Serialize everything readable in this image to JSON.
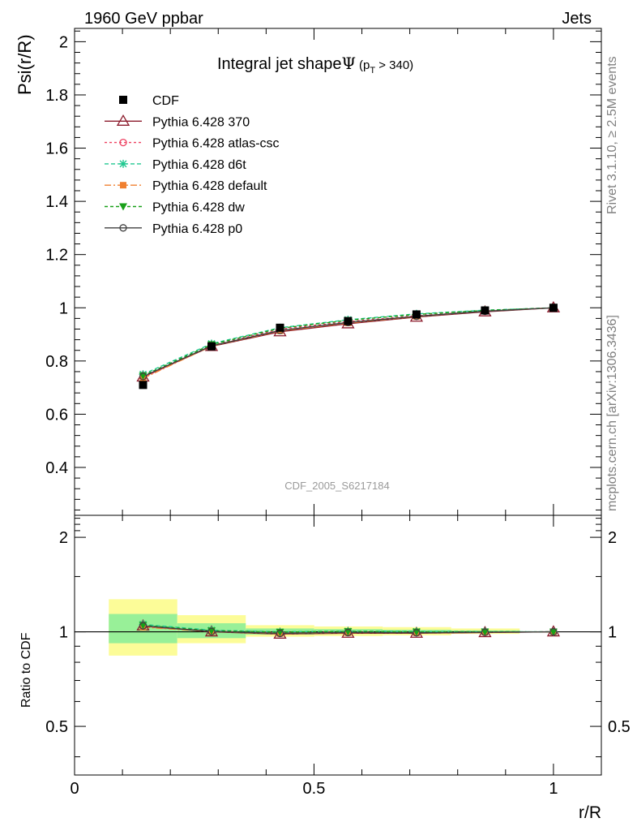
{
  "header": {
    "left": "1960 GeV ppbar",
    "right": "Jets"
  },
  "side_labels": {
    "rivet": "Rivet 3.1.10, ≥ 2.5M events",
    "mcplots": "mcplots.cern.ch [arXiv:1306.3436]"
  },
  "analysis_id": "CDF_2005_S6217184",
  "chart_data": [
    {
      "type": "line",
      "title_main": "Integral jet shape",
      "title_psi": "Ψ",
      "title_cut_open": "(p",
      "title_cut_sub": "T",
      "title_cut_close": " > 340)",
      "ylabel": "Psi(r/R)",
      "xlim": [
        0,
        1.1
      ],
      "ylim": [
        0.22,
        2.05
      ],
      "yticks": [
        0.4,
        0.6,
        0.8,
        1,
        1.2,
        1.4,
        1.6,
        1.8,
        2
      ],
      "ytick_labels": [
        "0.4",
        "0.6",
        "0.8",
        "1",
        "1.2",
        "1.4",
        "1.6",
        "1.8",
        "2"
      ],
      "x": [
        0.143,
        0.286,
        0.429,
        0.571,
        0.714,
        0.857,
        1.0
      ],
      "series": [
        {
          "name": "CDF",
          "color": "#000000",
          "marker": "filled-square",
          "dash": "none",
          "values": [
            0.71,
            0.855,
            0.925,
            0.95,
            0.975,
            0.99,
            1.0
          ]
        },
        {
          "name": "Pythia 6.428 370",
          "color": "#8b1a2b",
          "marker": "open-triangle",
          "dash": "solid",
          "values": [
            0.74,
            0.855,
            0.91,
            0.94,
            0.965,
            0.985,
            1.0
          ]
        },
        {
          "name": "Pythia 6.428 atlas-csc",
          "color": "#ee4060",
          "marker": "open-circle",
          "dash": "3,3",
          "values": [
            0.737,
            0.858,
            0.92,
            0.948,
            0.97,
            0.988,
            1.0
          ]
        },
        {
          "name": "Pythia 6.428 d6t",
          "color": "#20c890",
          "marker": "star",
          "dash": "5,3",
          "values": [
            0.75,
            0.865,
            0.925,
            0.955,
            0.977,
            0.991,
            1.0
          ]
        },
        {
          "name": "Pythia 6.428 default",
          "color": "#f08030",
          "marker": "filled-square-small",
          "dash": "8,3,2,3",
          "values": [
            0.735,
            0.856,
            0.913,
            0.943,
            0.967,
            0.987,
            1.0
          ]
        },
        {
          "name": "Pythia 6.428 dw",
          "color": "#19a019",
          "marker": "filled-triangle-down",
          "dash": "4,3",
          "values": [
            0.745,
            0.862,
            0.923,
            0.953,
            0.975,
            0.99,
            1.0
          ]
        },
        {
          "name": "Pythia 6.428 p0",
          "color": "#404040",
          "marker": "open-circle",
          "dash": "solid",
          "values": [
            0.742,
            0.857,
            0.915,
            0.945,
            0.968,
            0.987,
            1.0
          ]
        }
      ],
      "legend_position": "top-left"
    },
    {
      "type": "line",
      "xlabel": "r/R",
      "ylabel": "Ratio to CDF",
      "xlim": [
        0,
        1.1
      ],
      "ylim": [
        0.35,
        2.35
      ],
      "log_y": true,
      "xticks": [
        0,
        0.5,
        1
      ],
      "xtick_labels": [
        "0",
        "0.5",
        "1"
      ],
      "yticks": [
        0.5,
        1,
        2
      ],
      "ytick_labels": [
        "0.5",
        "1",
        "2"
      ],
      "bins": [
        [
          0.0715,
          0.2145
        ],
        [
          0.2145,
          0.3575
        ],
        [
          0.3575,
          0.5005
        ],
        [
          0.5005,
          0.6435
        ],
        [
          0.6435,
          0.7865
        ],
        [
          0.7865,
          0.9295
        ]
      ],
      "band_yellow": [
        [
          0.84,
          1.27
        ],
        [
          0.92,
          1.13
        ],
        [
          0.965,
          1.05
        ],
        [
          0.97,
          1.04
        ],
        [
          0.975,
          1.035
        ],
        [
          0.985,
          1.025
        ]
      ],
      "band_green": [
        [
          0.92,
          1.14
        ],
        [
          0.955,
          1.065
        ],
        [
          0.98,
          1.025
        ],
        [
          0.985,
          1.02
        ],
        [
          0.99,
          1.015
        ],
        [
          0.993,
          1.01
        ]
      ],
      "x": [
        0.143,
        0.286,
        0.429,
        0.571,
        0.714,
        0.857,
        1.0
      ],
      "ratio_series": [
        {
          "name": "Pythia 6.428 370",
          "values": [
            1.045,
            1.0,
            0.984,
            0.99,
            0.99,
            0.995,
            1.0
          ]
        },
        {
          "name": "Pythia 6.428 atlas-csc",
          "values": [
            1.038,
            1.004,
            0.995,
            0.998,
            0.995,
            0.998,
            1.0
          ]
        },
        {
          "name": "Pythia 6.428 d6t",
          "values": [
            1.056,
            1.012,
            1.0,
            1.005,
            1.002,
            1.001,
            1.0
          ]
        },
        {
          "name": "Pythia 6.428 default",
          "values": [
            1.035,
            1.001,
            0.987,
            0.993,
            0.992,
            0.997,
            1.0
          ]
        },
        {
          "name": "Pythia 6.428 dw",
          "values": [
            1.049,
            1.008,
            0.998,
            1.003,
            1.0,
            1.0,
            1.0
          ]
        },
        {
          "name": "Pythia 6.428 p0",
          "values": [
            1.045,
            1.002,
            0.989,
            0.995,
            0.993,
            0.997,
            1.0
          ]
        }
      ]
    }
  ]
}
